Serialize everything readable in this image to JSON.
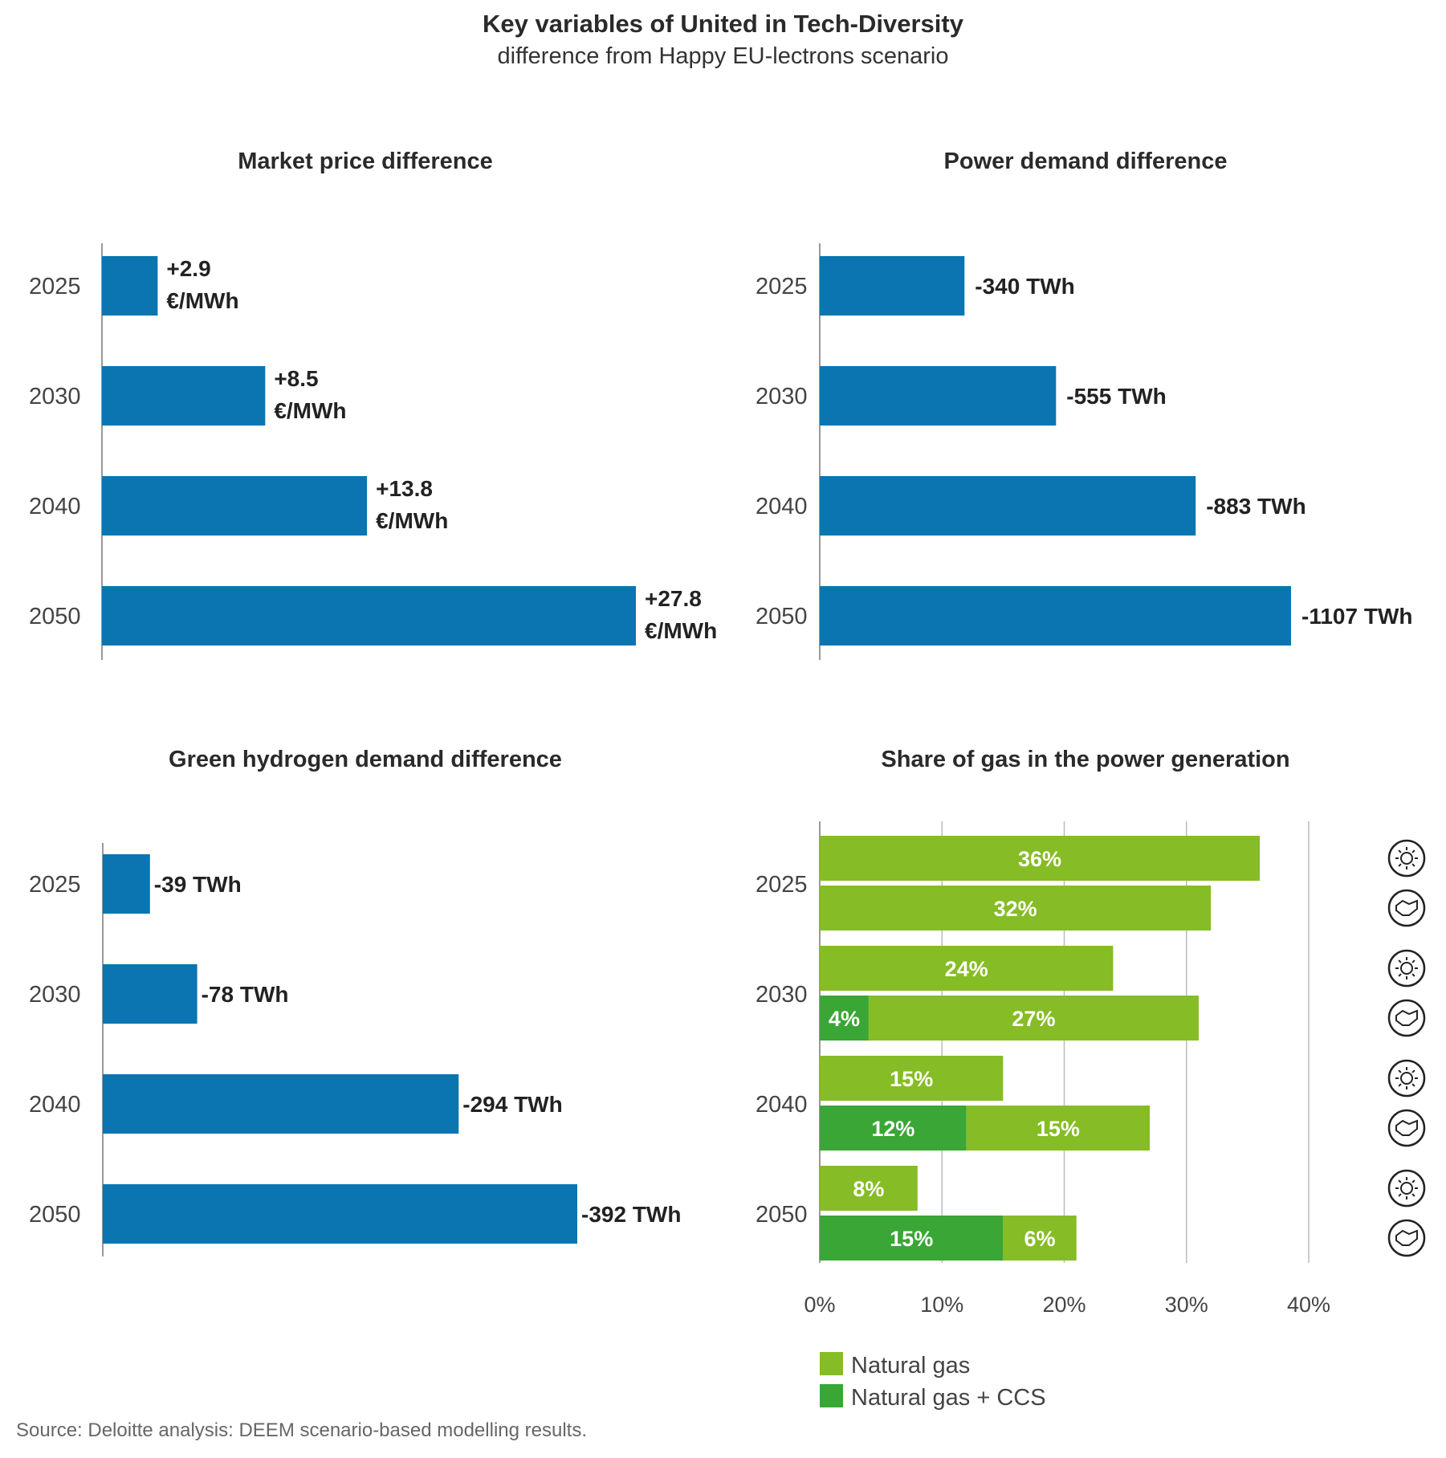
{
  "title": "Key variables of United in Tech-Diversity",
  "subtitle": "difference from Happy EU-lectrons scenario",
  "source": "Source: Deloitte analysis: DEEM scenario-based modelling results.",
  "colors": {
    "bar_blue": "#0a75b0",
    "natural_gas": "#86bc25",
    "natural_gas_ccs": "#3aa635",
    "axis": "#999999",
    "grid": "#bbbbbb"
  },
  "chart_data": [
    {
      "type": "bar",
      "orientation": "horizontal",
      "title": "Market price difference",
      "categories": [
        "2025",
        "2030",
        "2040",
        "2050"
      ],
      "values": [
        2.9,
        8.5,
        13.8,
        27.8
      ],
      "labels": [
        [
          "+2.9",
          "€/MWh"
        ],
        [
          "+8.5",
          "€/MWh"
        ],
        [
          "+13.8",
          "€/MWh"
        ],
        [
          "+27.8",
          "€/MWh"
        ]
      ],
      "unit": "€/MWh"
    },
    {
      "type": "bar",
      "orientation": "horizontal",
      "title": "Power demand difference",
      "categories": [
        "2025",
        "2030",
        "2040",
        "2050"
      ],
      "values": [
        -340,
        -555,
        -883,
        -1107
      ],
      "labels": [
        [
          "-340 TWh"
        ],
        [
          "-555 TWh"
        ],
        [
          "-883 TWh"
        ],
        [
          "-1107 TWh"
        ]
      ],
      "unit": "TWh"
    },
    {
      "type": "bar",
      "orientation": "horizontal",
      "title": "Green hydrogen demand difference",
      "categories": [
        "2025",
        "2030",
        "2040",
        "2050"
      ],
      "values": [
        -39,
        -78,
        -294,
        -392
      ],
      "labels": [
        [
          "-39 TWh"
        ],
        [
          "-78 TWh"
        ],
        [
          "-294 TWh"
        ],
        [
          "-392 TWh"
        ]
      ],
      "unit": "TWh"
    },
    {
      "type": "bar",
      "orientation": "horizontal",
      "stacked": true,
      "title": "Share of gas in the power generation",
      "categories": [
        "2025",
        "2030",
        "2040",
        "2050"
      ],
      "xticks": [
        "0%",
        "10%",
        "20%",
        "30%",
        "40%"
      ],
      "xlim": [
        0,
        40
      ],
      "grid": true,
      "legend": [
        {
          "name": "Natural gas",
          "color_key": "natural_gas"
        },
        {
          "name": "Natural gas + CCS",
          "color_key": "natural_gas_ccs"
        }
      ],
      "legend_position": "bottom",
      "groups": [
        {
          "category": "2025",
          "rows": [
            {
              "icon": "sun-icon",
              "natural_gas_ccs": 0,
              "natural_gas": 36,
              "ccs_label": "",
              "gas_label": "36%"
            },
            {
              "icon": "handshake-icon",
              "natural_gas_ccs": 0,
              "natural_gas": 32,
              "ccs_label": "",
              "gas_label": "32%"
            }
          ]
        },
        {
          "category": "2030",
          "rows": [
            {
              "icon": "sun-icon",
              "natural_gas_ccs": 0,
              "natural_gas": 24,
              "ccs_label": "",
              "gas_label": "24%"
            },
            {
              "icon": "handshake-icon",
              "natural_gas_ccs": 4,
              "natural_gas": 27,
              "ccs_label": "4%",
              "gas_label": "27%"
            }
          ]
        },
        {
          "category": "2040",
          "rows": [
            {
              "icon": "sun-icon",
              "natural_gas_ccs": 0,
              "natural_gas": 15,
              "ccs_label": "",
              "gas_label": "15%"
            },
            {
              "icon": "handshake-icon",
              "natural_gas_ccs": 12,
              "natural_gas": 15,
              "ccs_label": "12%",
              "gas_label": "15%"
            }
          ]
        },
        {
          "category": "2050",
          "rows": [
            {
              "icon": "sun-icon",
              "natural_gas_ccs": 0,
              "natural_gas": 8,
              "ccs_label": "",
              "gas_label": "8%"
            },
            {
              "icon": "handshake-icon",
              "natural_gas_ccs": 15,
              "natural_gas": 6,
              "ccs_label": "15%",
              "gas_label": "6%"
            }
          ]
        }
      ]
    }
  ]
}
